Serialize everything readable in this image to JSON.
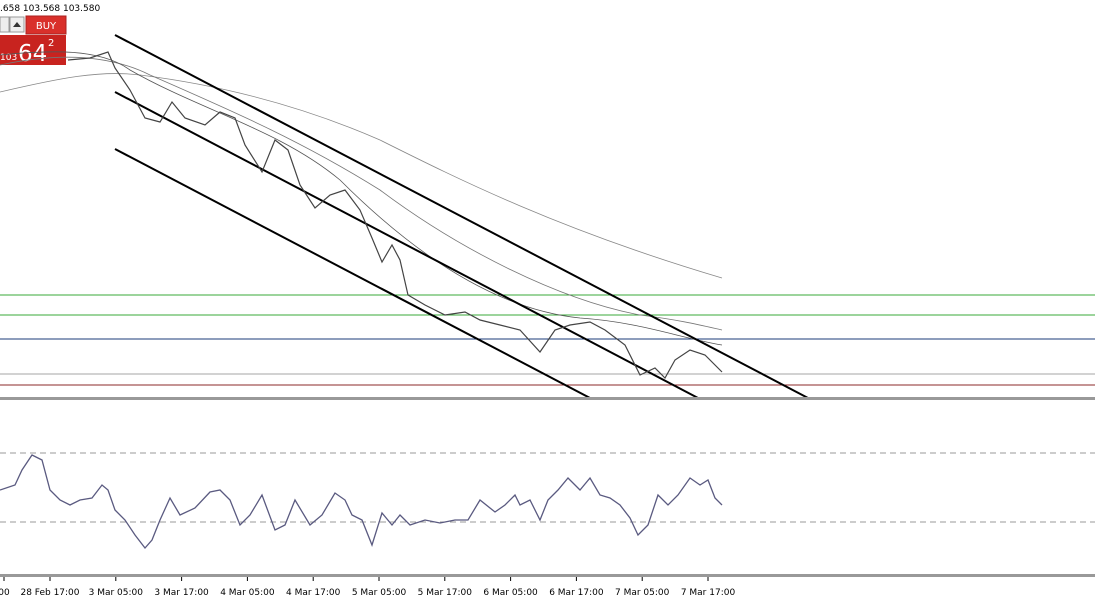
{
  "header": {
    "quote": ".658 103.568 103.580"
  },
  "trade_panel": {
    "buy_label": "BUY",
    "price_prefix": "103",
    "price_big": "64",
    "price_sup": "2"
  },
  "time_axis": {
    "labels": [
      "00",
      "28 Feb 17:00",
      "3 Mar 05:00",
      "3 Mar 17:00",
      "4 Mar 05:00",
      "4 Mar 17:00",
      "5 Mar 05:00",
      "5 Mar 17:00",
      "6 Mar 05:00",
      "6 Mar 17:00",
      "7 Mar 05:00",
      "7 Mar 17:00"
    ]
  }
}
